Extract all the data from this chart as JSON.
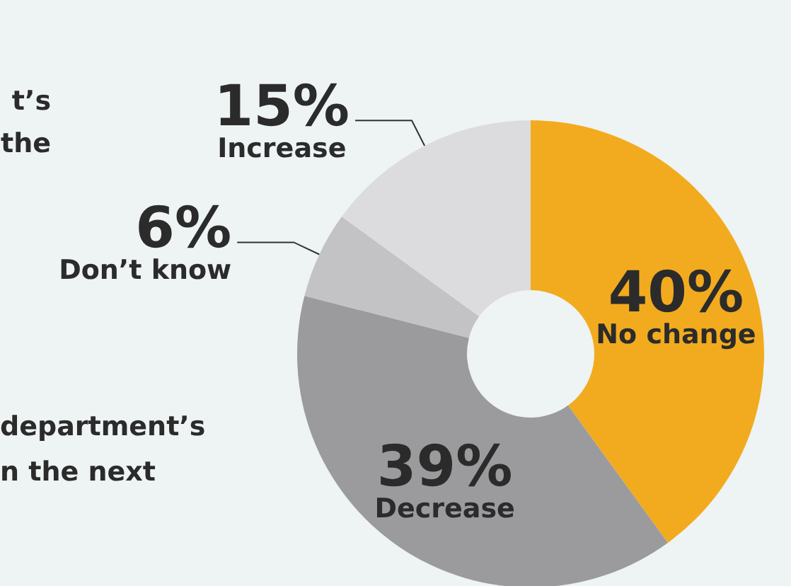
{
  "chart_data": {
    "type": "donut",
    "categories": [
      "No change",
      "Decrease",
      "Don’t know",
      "Increase"
    ],
    "values": [
      40,
      39,
      6,
      15
    ],
    "value_labels": [
      "40%",
      "39%",
      "6%",
      "15%"
    ],
    "colors": [
      "#f2ab1f",
      "#9b9b9d",
      "#c3c3c5",
      "#dcdcde"
    ],
    "legend": false,
    "annotations": [
      "t’s",
      "the",
      "department’s",
      "n the next"
    ]
  }
}
